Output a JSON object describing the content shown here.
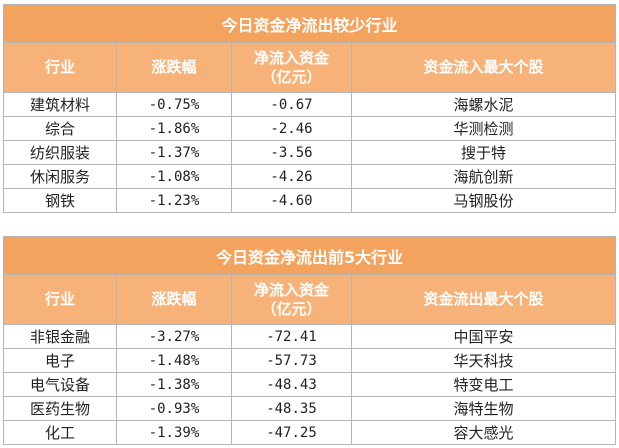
{
  "tables": [
    {
      "title": "今日资金净流出较少行业",
      "headers": [
        "行业",
        "涨跌幅",
        "净流入资金\n（亿元）",
        "资金流入最大个股"
      ],
      "rows": [
        [
          "建筑材料",
          "-0.75%",
          "-0.67",
          "海螺水泥"
        ],
        [
          "综合",
          "-1.86%",
          "-2.46",
          "华测检测"
        ],
        [
          "纺织服装",
          "-1.37%",
          "-3.56",
          "搜于特"
        ],
        [
          "休闲服务",
          "-1.08%",
          "-4.26",
          "海航创新"
        ],
        [
          "钢铁",
          "-1.23%",
          "-4.60",
          "马钢股份"
        ]
      ]
    },
    {
      "title": "今日资金净流出前5大行业",
      "headers": [
        "行业",
        "涨跌幅",
        "净流入资金\n（亿元）",
        "资金流出最大个股"
      ],
      "rows": [
        [
          "非银金融",
          "-3.27%",
          "-72.41",
          "中国平安"
        ],
        [
          "电子",
          "-1.48%",
          "-57.73",
          "华天科技"
        ],
        [
          "电气设备",
          "-1.38%",
          "-48.43",
          "特变电工"
        ],
        [
          "医药生物",
          "-0.93%",
          "-48.35",
          "海特生物"
        ],
        [
          "化工",
          "-1.39%",
          "-47.25",
          "容大感光"
        ]
      ]
    }
  ]
}
